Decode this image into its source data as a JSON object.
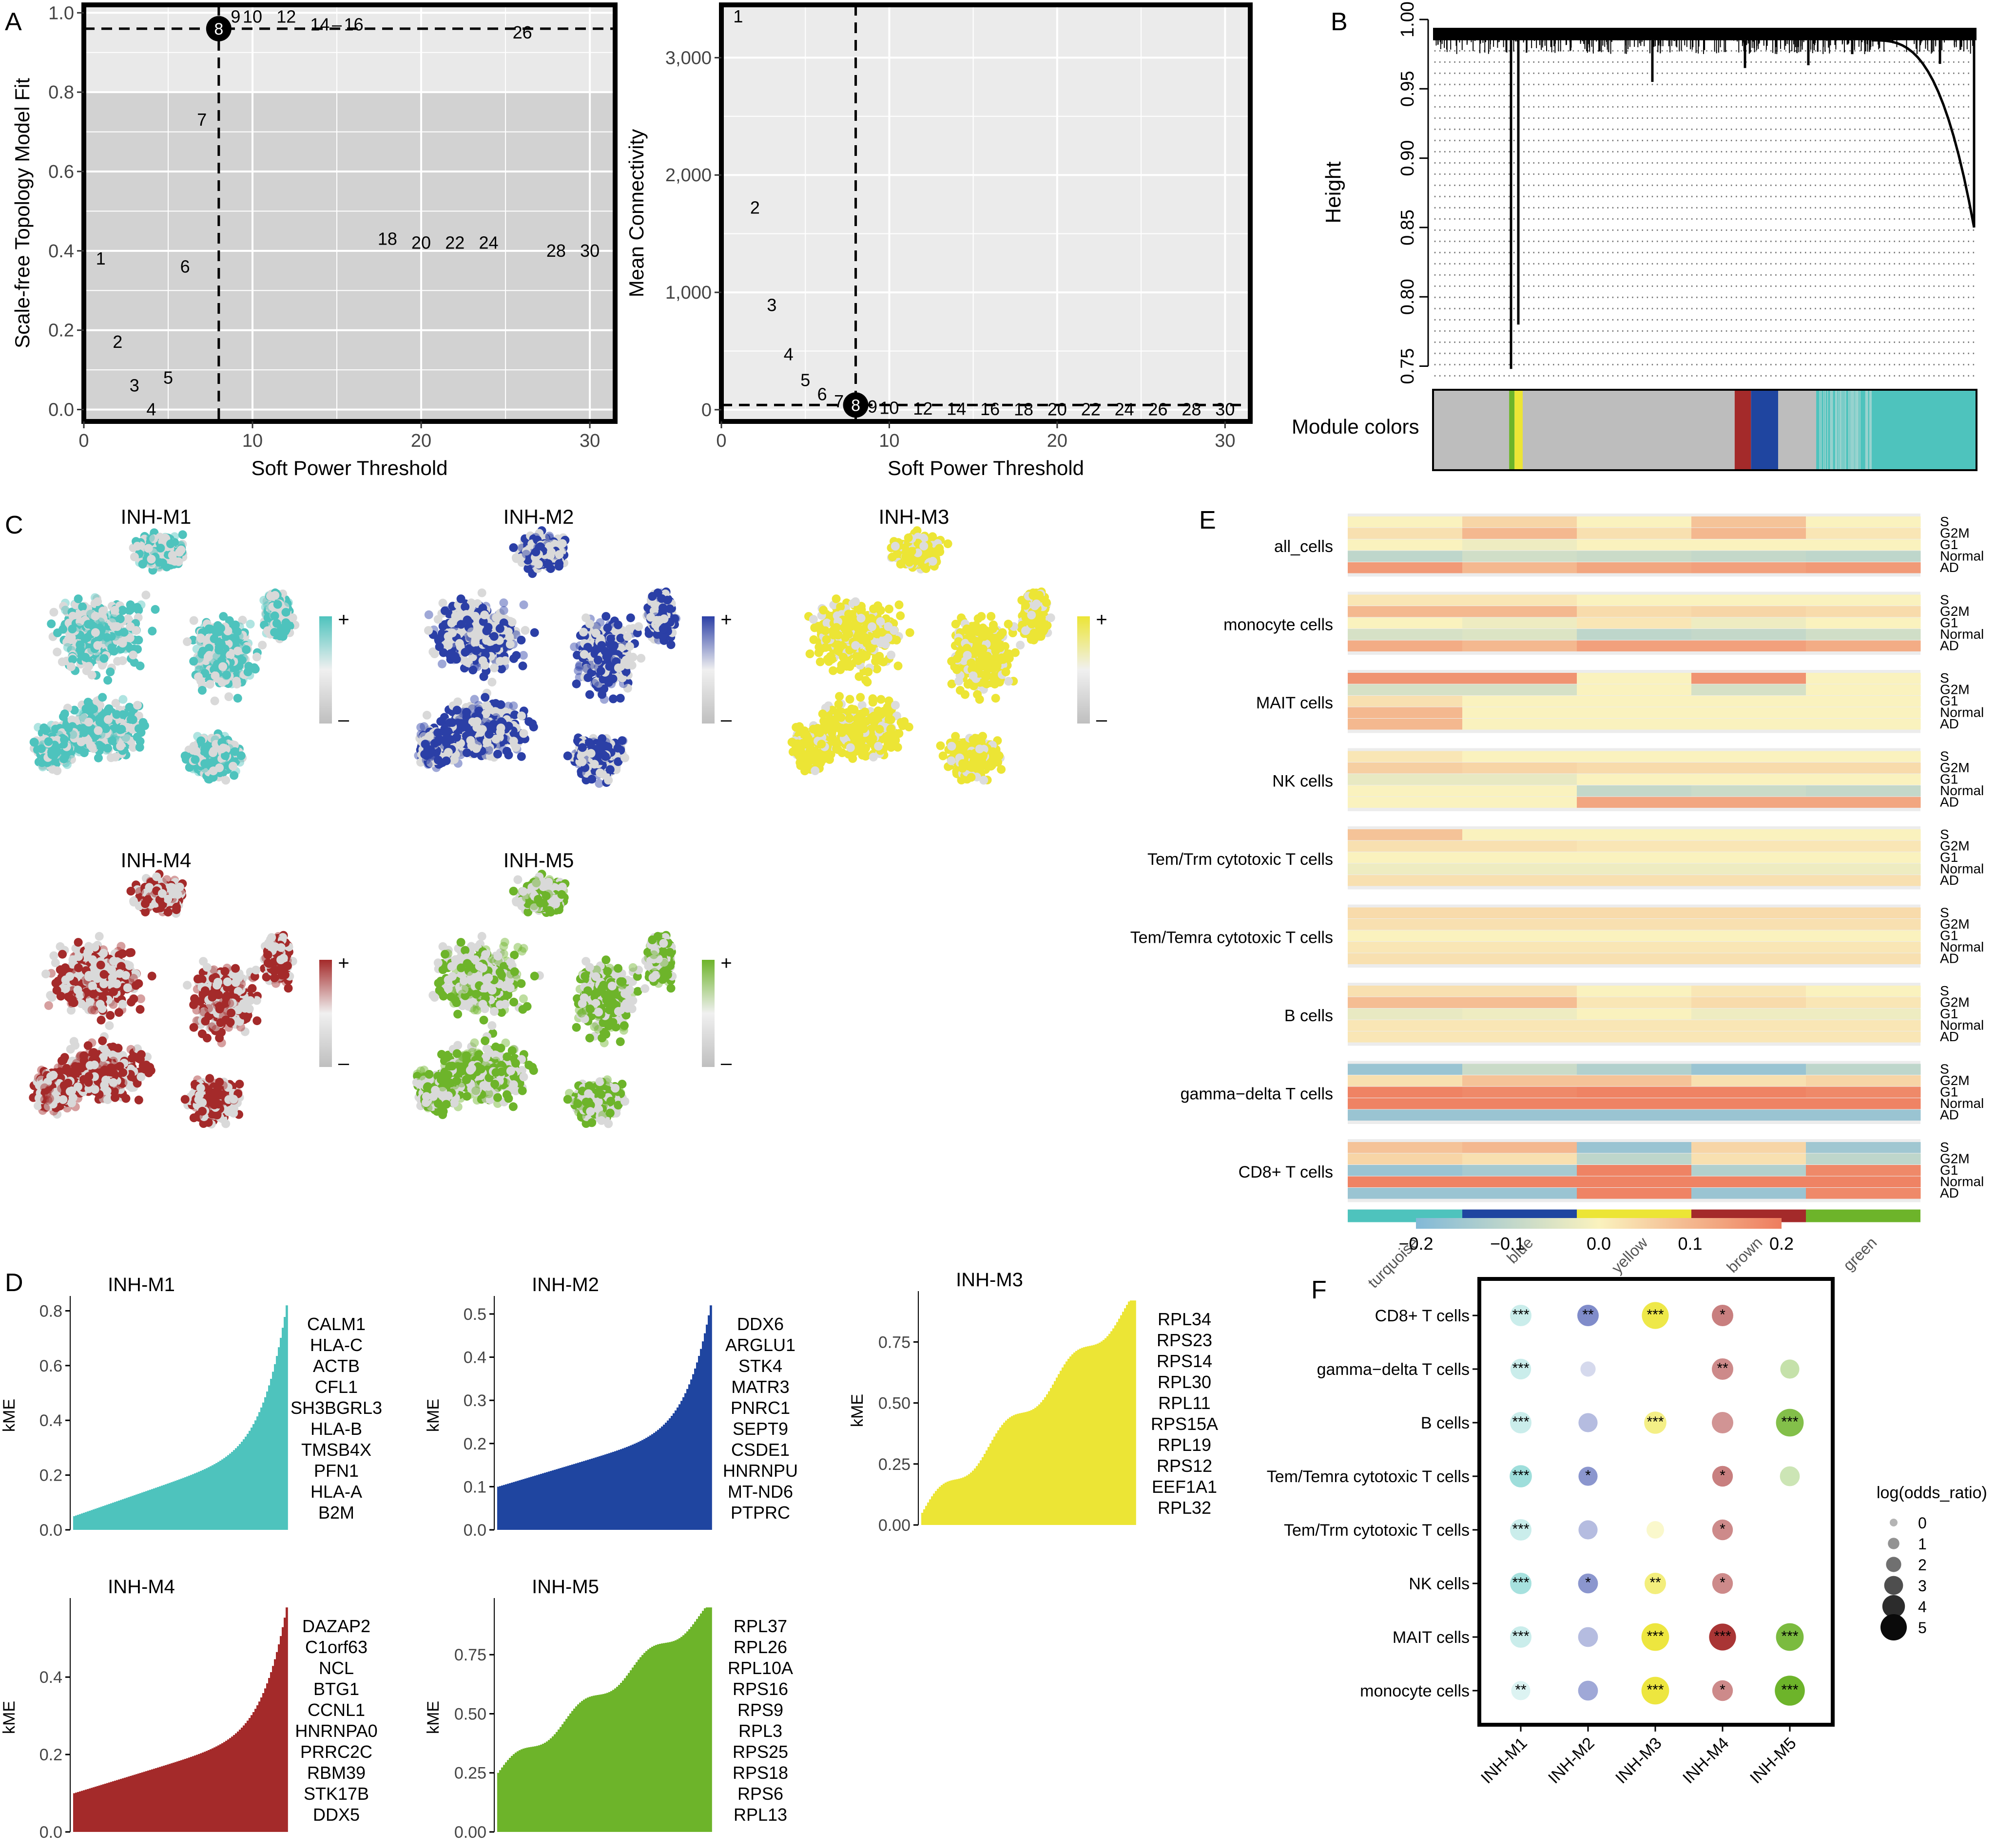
{
  "panel_letters": [
    "A",
    "B",
    "C",
    "D",
    "E",
    "F"
  ],
  "colors": {
    "turquoise": "#4ec3bd",
    "blue": "#1f45a0",
    "yellow": "#ece535",
    "brown": "#a42a2a",
    "green": "#6db42a",
    "grey": "#bdbdbd",
    "panel_bg": "#d2d2d2",
    "panel_bg_light": "#e9e9e9"
  },
  "chart_data": [
    {
      "id": "A1",
      "type": "scatter",
      "title": "",
      "xlabel": "Soft Power Threshold",
      "ylabel": "Scale-free Topology Model Fit",
      "xlim": [
        0,
        31.5
      ],
      "ylim": [
        -0.03,
        1.02
      ],
      "xticks": [
        "0",
        "10",
        "20",
        "30"
      ],
      "yticks": [
        "0.0",
        "0.2",
        "0.4",
        "0.6",
        "0.8",
        "1.0"
      ],
      "threshold_line": 0.96,
      "selected_power": 8,
      "shade_above": 0.8,
      "points": [
        {
          "x": 1,
          "y": 0.38,
          "label": "1"
        },
        {
          "x": 2,
          "y": 0.17,
          "label": "2"
        },
        {
          "x": 3,
          "y": 0.06,
          "label": "3"
        },
        {
          "x": 4,
          "y": 0.0,
          "label": "4"
        },
        {
          "x": 5,
          "y": 0.08,
          "label": "5"
        },
        {
          "x": 6,
          "y": 0.36,
          "label": "6"
        },
        {
          "x": 7,
          "y": 0.73,
          "label": "7"
        },
        {
          "x": 8,
          "y": 0.96,
          "label": "8"
        },
        {
          "x": 9,
          "y": 0.99,
          "label": "9"
        },
        {
          "x": 10,
          "y": 0.99,
          "label": "10"
        },
        {
          "x": 12,
          "y": 0.99,
          "label": "12"
        },
        {
          "x": 14,
          "y": 0.97,
          "label": "14"
        },
        {
          "x": 15,
          "y": 0.97,
          "label": "–"
        },
        {
          "x": 16,
          "y": 0.97,
          "label": "16"
        },
        {
          "x": 18,
          "y": 0.43,
          "label": "18"
        },
        {
          "x": 20,
          "y": 0.42,
          "label": "20"
        },
        {
          "x": 22,
          "y": 0.42,
          "label": "22"
        },
        {
          "x": 24,
          "y": 0.42,
          "label": "24"
        },
        {
          "x": 26,
          "y": 0.95,
          "label": "26"
        },
        {
          "x": 28,
          "y": 0.4,
          "label": "28"
        },
        {
          "x": 30,
          "y": 0.4,
          "label": "30"
        }
      ]
    },
    {
      "id": "A2",
      "type": "scatter",
      "xlabel": "Soft Power Threshold",
      "ylabel": "Mean Connectivity",
      "xlim": [
        0,
        31.5
      ],
      "ylim": [
        -100,
        3450
      ],
      "xticks": [
        "0",
        "10",
        "20",
        "30"
      ],
      "yticks": [
        "0",
        "1,000",
        "2,000",
        "3,000"
      ],
      "threshold_line": 40,
      "selected_power": 8,
      "points": [
        {
          "x": 1,
          "y": 3350,
          "label": "1"
        },
        {
          "x": 2,
          "y": 1720,
          "label": "2"
        },
        {
          "x": 3,
          "y": 890,
          "label": "3"
        },
        {
          "x": 4,
          "y": 470,
          "label": "4"
        },
        {
          "x": 5,
          "y": 250,
          "label": "5"
        },
        {
          "x": 6,
          "y": 130,
          "label": "6"
        },
        {
          "x": 7,
          "y": 70,
          "label": "7"
        },
        {
          "x": 8,
          "y": 40,
          "label": "8"
        },
        {
          "x": 9,
          "y": 25,
          "label": "9"
        },
        {
          "x": 10,
          "y": 15,
          "label": "10"
        },
        {
          "x": 12,
          "y": 8,
          "label": "12"
        },
        {
          "x": 14,
          "y": 5,
          "label": "14"
        },
        {
          "x": 16,
          "y": 3,
          "label": "16"
        },
        {
          "x": 18,
          "y": 2,
          "label": "18"
        },
        {
          "x": 20,
          "y": 2,
          "label": "20"
        },
        {
          "x": 22,
          "y": 1,
          "label": "22"
        },
        {
          "x": 24,
          "y": 1,
          "label": "24"
        },
        {
          "x": 26,
          "y": 1,
          "label": "26"
        },
        {
          "x": 28,
          "y": 1,
          "label": "28"
        },
        {
          "x": 30,
          "y": 1,
          "label": "30"
        }
      ]
    },
    {
      "id": "B",
      "type": "dendrogram",
      "ylabel": "Height",
      "ylim": [
        0.74,
        1.0
      ],
      "yticks": [
        "0.75",
        "0.80",
        "0.85",
        "0.90",
        "0.95",
        "1.00"
      ],
      "color_bar_label": "Module colors",
      "color_segments": [
        {
          "module": "grey",
          "width": 0.14
        },
        {
          "module": "green",
          "width": 0.01
        },
        {
          "module": "yellow",
          "width": 0.015
        },
        {
          "module": "grey",
          "width": 0.39
        },
        {
          "module": "brown",
          "width": 0.03
        },
        {
          "module": "blue",
          "width": 0.05
        },
        {
          "module": "grey",
          "width": 0.07
        },
        {
          "module": "turquoise",
          "width": 0.295
        }
      ]
    },
    {
      "id": "C",
      "type": "scatter",
      "panels": [
        {
          "title": "INH-M1",
          "color": "#4ec3bd"
        },
        {
          "title": "INH-M2",
          "color": "#2b3fa6"
        },
        {
          "title": "INH-M3",
          "color": "#ece535"
        },
        {
          "title": "INH-M4",
          "color": "#a42a2a"
        },
        {
          "title": "INH-M5",
          "color": "#6db42a"
        }
      ],
      "legend_plus": "+",
      "legend_minus": "–"
    },
    {
      "id": "D",
      "type": "bar",
      "ylabel": "kME",
      "panels": [
        {
          "title": "INH-M1",
          "color": "#4ec3bd",
          "ymax": 0.8,
          "yticks": [
            "0.0",
            "0.2",
            "0.4",
            "0.6",
            "0.8"
          ],
          "curve": "exp",
          "vmin": 0.05,
          "vmax": 0.82,
          "genes": [
            "CALM1",
            "HLA-C",
            "ACTB",
            "CFL1",
            "SH3BGRL3",
            "HLA-B",
            "TMSB4X",
            "PFN1",
            "HLA-A",
            "B2M"
          ]
        },
        {
          "title": "INH-M2",
          "color": "#1f45a0",
          "ymax": 0.5,
          "yticks": [
            "0.0",
            "0.1",
            "0.2",
            "0.3",
            "0.4",
            "0.5"
          ],
          "curve": "exp",
          "vmin": 0.1,
          "vmax": 0.52,
          "genes": [
            "DDX6",
            "ARGLU1",
            "STK4",
            "MATR3",
            "PNRC1",
            "SEPT9",
            "CSDE1",
            "HNRNPU",
            "MT-ND6",
            "PTPRC"
          ]
        },
        {
          "title": "INH-M3",
          "color": "#ece535",
          "ymax": 0.75,
          "yticks": [
            "0.00",
            "0.25",
            "0.50",
            "0.75"
          ],
          "curve": "linear",
          "vmin": 0.05,
          "vmax": 0.92,
          "genes": [
            "RPL34",
            "RPS23",
            "RPS14",
            "RPL30",
            "RPL11",
            "RPS15A",
            "RPL19",
            "RPS12",
            "EEF1A1",
            "RPL32"
          ]
        },
        {
          "title": "INH-M4",
          "color": "#a42a2a",
          "ymax": 0.4,
          "yticks": [
            "0.0",
            "0.2",
            "0.4"
          ],
          "curve": "exp",
          "vmin": 0.1,
          "vmax": 0.58,
          "genes": [
            "DAZAP2",
            "C1orf63",
            "NCL",
            "BTG1",
            "CCNL1",
            "HNRNPA0",
            "PRRC2C",
            "RBM39",
            "STK17B",
            "DDX5"
          ]
        },
        {
          "title": "INH-M5",
          "color": "#6db42a",
          "ymax": 0.75,
          "yticks": [
            "0.00",
            "0.25",
            "0.50",
            "0.75"
          ],
          "curve": "linear",
          "vmin": 0.25,
          "vmax": 0.95,
          "genes": [
            "RPL37",
            "RPL26",
            "RPL10A",
            "RPS16",
            "RPS9",
            "RPL3",
            "RPS25",
            "RPS18",
            "RPS6",
            "RPL13"
          ]
        }
      ]
    },
    {
      "id": "E",
      "type": "heatmap",
      "columns": [
        "turquoise",
        "blue",
        "yellow",
        "brown",
        "green"
      ],
      "row_labels": [
        "S",
        "G2M",
        "G1",
        "Normal",
        "AD"
      ],
      "groups": [
        "all_cells",
        "monocyte cells",
        "MAIT cells",
        "NK cells",
        "Tem/Trm cytotoxic T cells",
        "Tem/Temra cytotoxic T cells",
        "B cells",
        "gamma−delta T cells",
        "CD8+ T cells"
      ],
      "values": [
        [
          [
            0.0,
            0.05,
            0.0,
            0.08,
            0.0
          ],
          [
            0.03,
            0.1,
            0.03,
            0.1,
            0.02
          ],
          [
            0.0,
            -0.02,
            0.0,
            0.0,
            0.0
          ],
          [
            -0.1,
            -0.07,
            -0.08,
            -0.09,
            -0.1
          ],
          [
            0.15,
            0.1,
            0.13,
            0.14,
            0.15
          ]
        ],
        [
          [
            0.02,
            0.02,
            0.0,
            0.0,
            0.0
          ],
          [
            0.1,
            0.1,
            0.04,
            0.05,
            0.04
          ],
          [
            0.0,
            -0.02,
            0.02,
            -0.02,
            0.0
          ],
          [
            -0.06,
            -0.05,
            -0.1,
            -0.09,
            -0.07
          ],
          [
            0.12,
            0.1,
            0.14,
            0.14,
            0.12
          ]
        ],
        [
          [
            0.16,
            0.16,
            0.0,
            0.16,
            0.0
          ],
          [
            -0.06,
            -0.06,
            0.0,
            -0.06,
            0.0
          ],
          [
            0.03,
            0.0,
            0.0,
            0.0,
            0.0
          ],
          [
            0.1,
            0.0,
            0.0,
            0.0,
            0.0
          ],
          [
            0.1,
            0.0,
            0.0,
            0.0,
            0.0
          ]
        ],
        [
          [
            0.02,
            0.0,
            0.0,
            0.0,
            0.0
          ],
          [
            0.06,
            0.05,
            0.04,
            0.04,
            0.04
          ],
          [
            -0.03,
            -0.03,
            0.0,
            0.0,
            0.0
          ],
          [
            0.0,
            0.0,
            -0.09,
            -0.08,
            -0.09
          ],
          [
            0.0,
            0.0,
            0.13,
            0.13,
            0.13
          ]
        ],
        [
          [
            0.08,
            0.0,
            0.0,
            0.0,
            0.0
          ],
          [
            0.03,
            0.03,
            0.02,
            0.02,
            0.02
          ],
          [
            0.0,
            0.0,
            0.0,
            0.0,
            0.0
          ],
          [
            -0.02,
            -0.02,
            -0.02,
            -0.02,
            -0.02
          ],
          [
            0.03,
            0.03,
            0.03,
            0.03,
            0.03
          ]
        ],
        [
          [
            0.04,
            0.04,
            0.04,
            0.04,
            0.04
          ],
          [
            0.03,
            0.03,
            0.03,
            0.03,
            0.03
          ],
          [
            0.0,
            0.0,
            0.0,
            0.0,
            0.0
          ],
          [
            0.02,
            0.02,
            0.02,
            0.02,
            0.02
          ],
          [
            0.03,
            0.03,
            0.03,
            0.03,
            0.03
          ]
        ],
        [
          [
            0.03,
            0.03,
            0.0,
            0.02,
            0.0
          ],
          [
            0.09,
            0.09,
            0.02,
            0.04,
            0.02
          ],
          [
            -0.03,
            -0.02,
            0.0,
            -0.02,
            -0.02
          ],
          [
            0.02,
            0.02,
            0.02,
            0.02,
            0.02
          ],
          [
            0.02,
            0.02,
            0.02,
            0.02,
            0.02
          ]
        ],
        [
          [
            -0.16,
            -0.08,
            -0.12,
            -0.16,
            -0.1
          ],
          [
            0.03,
            0.08,
            0.08,
            0.03,
            0.05
          ],
          [
            0.19,
            0.18,
            0.19,
            0.19,
            0.18
          ],
          [
            0.19,
            0.19,
            0.19,
            0.19,
            0.19
          ],
          [
            -0.16,
            -0.16,
            -0.16,
            -0.16,
            -0.16
          ]
        ],
        [
          [
            0.08,
            0.1,
            -0.16,
            0.05,
            -0.15
          ],
          [
            0.05,
            0.03,
            -0.1,
            0.03,
            -0.1
          ],
          [
            -0.16,
            -0.14,
            0.19,
            -0.12,
            0.18
          ],
          [
            0.19,
            0.19,
            0.19,
            0.19,
            0.19
          ],
          [
            -0.16,
            -0.16,
            0.19,
            -0.16,
            0.18
          ]
        ]
      ],
      "scale": {
        "min": -0.2,
        "max": 0.2,
        "ticks": [
          "−0.2",
          "−0.1",
          "0.0",
          "0.1",
          "0.2"
        ]
      }
    },
    {
      "id": "F",
      "type": "scatter",
      "title": "",
      "columns": [
        "INH-M1",
        "INH-M2",
        "INH-M3",
        "INH-M4",
        "INH-M5"
      ],
      "column_colors": [
        "#4ec3bd",
        "#2b3fa6",
        "#ece535",
        "#a42a2a",
        "#6db42a"
      ],
      "rows": [
        "CD8+ T cells",
        "gamma−delta T cells",
        "B cells",
        "Tem/Temra cytotoxic T cells",
        "Tem/Trm cytotoxic T cells",
        "NK cells",
        "MAIT cells",
        "monocyte cells"
      ],
      "log_odds_ratio": [
        [
          1.5,
          1.5,
          2.2,
          1.5,
          0
        ],
        [
          1.4,
          0.7,
          0,
          1.5,
          1.2
        ],
        [
          1.5,
          1.2,
          1.6,
          1.5,
          2.3
        ],
        [
          1.6,
          1.2,
          0,
          1.4,
          1.3
        ],
        [
          1.5,
          1.2,
          1.0,
          1.4,
          0
        ],
        [
          1.5,
          1.3,
          1.5,
          1.4,
          0
        ],
        [
          1.5,
          1.3,
          2.3,
          2.2,
          2.3
        ],
        [
          1.2,
          1.3,
          2.3,
          1.4,
          2.6
        ]
      ],
      "alpha": [
        [
          0.3,
          0.6,
          0.9,
          0.6,
          0
        ],
        [
          0.3,
          0.2,
          0,
          0.55,
          0.4
        ],
        [
          0.3,
          0.35,
          0.6,
          0.5,
          0.85
        ],
        [
          0.55,
          0.55,
          0,
          0.6,
          0.35
        ],
        [
          0.3,
          0.35,
          0.25,
          0.55,
          0
        ],
        [
          0.5,
          0.55,
          0.65,
          0.55,
          0
        ],
        [
          0.3,
          0.35,
          0.95,
          0.95,
          0.9
        ],
        [
          0.2,
          0.45,
          0.95,
          0.55,
          1.0
        ]
      ],
      "stars": [
        [
          "***",
          "**",
          "***",
          "*",
          ""
        ],
        [
          "***",
          "",
          "",
          "**",
          ""
        ],
        [
          "***",
          "",
          "***",
          "",
          "***"
        ],
        [
          "***",
          "*",
          "",
          "*",
          ""
        ],
        [
          "***",
          "",
          "",
          "*",
          ""
        ],
        [
          "***",
          "*",
          "**",
          "*",
          ""
        ],
        [
          "***",
          "",
          "***",
          "***",
          "***"
        ],
        [
          "**",
          "",
          "***",
          "*",
          "***"
        ]
      ],
      "legend": {
        "title": "log(odds_ratio)",
        "levels": [
          "0",
          "1",
          "2",
          "3",
          "4",
          "5"
        ]
      }
    }
  ]
}
